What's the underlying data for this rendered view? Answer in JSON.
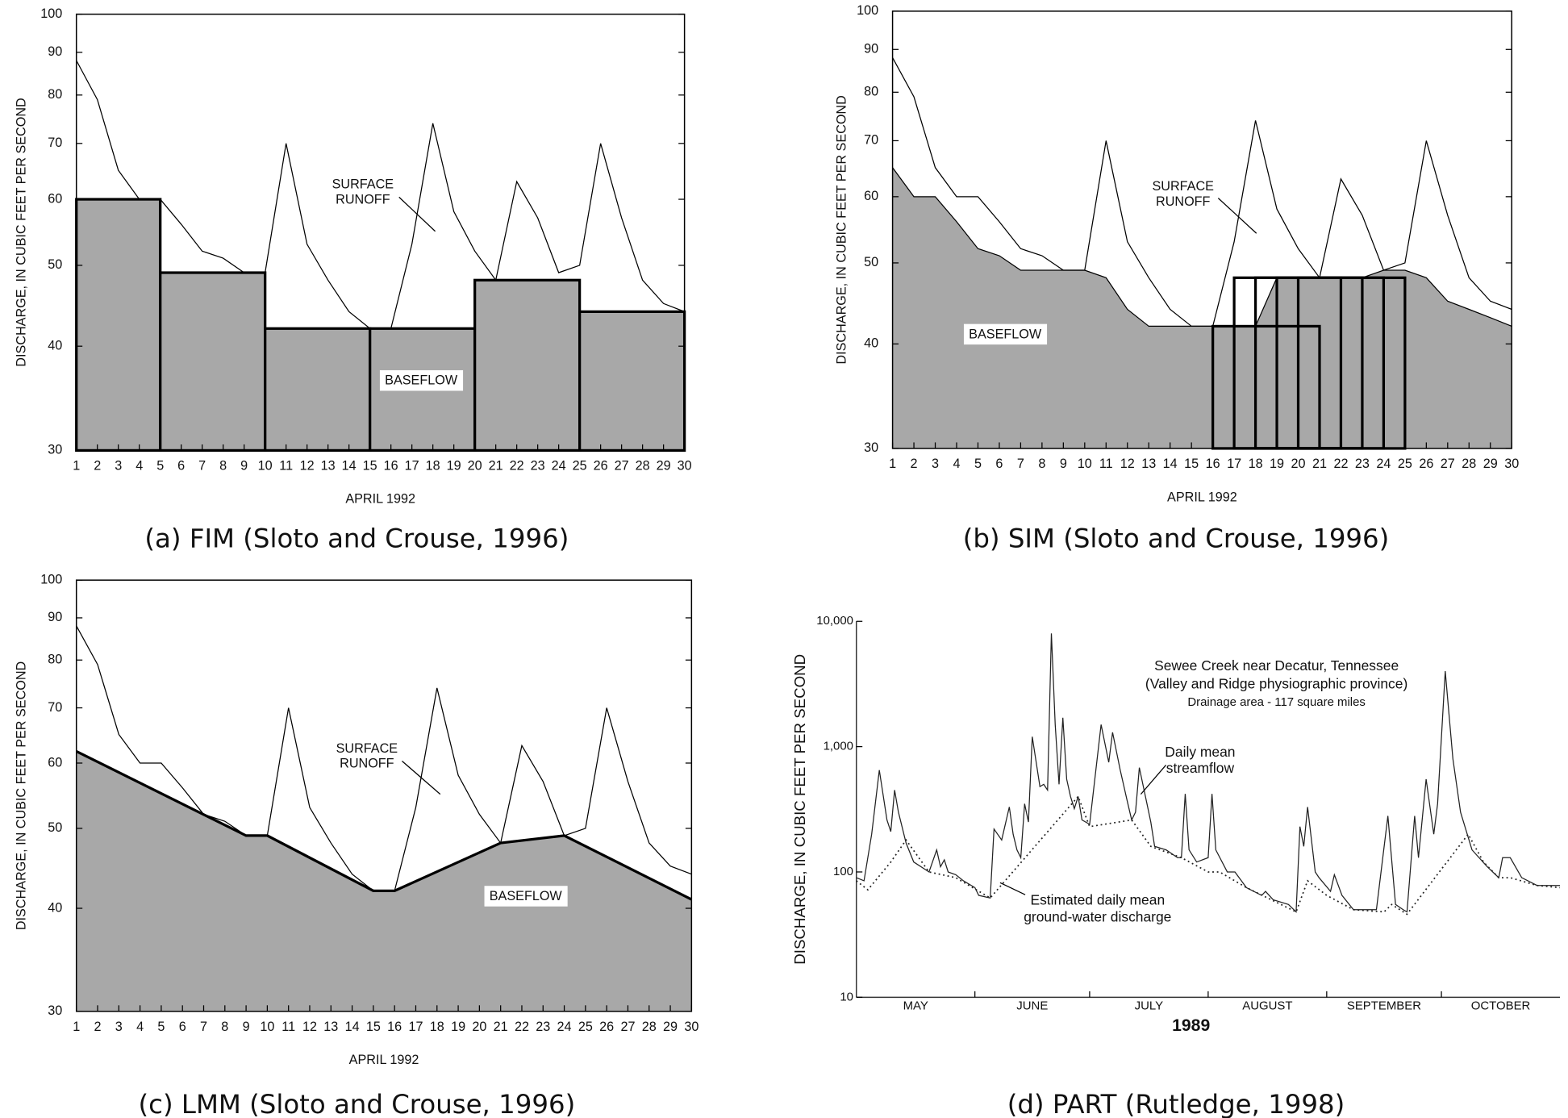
{
  "chart_data": [
    {
      "type": "line",
      "title": "(a) FIM (Sloto and Crouse, 1996)",
      "x_label": "APRIL 1992",
      "y_label": "DISCHARGE, IN CUBIC FEET PER SECOND",
      "log_y": true,
      "xlim": [
        1,
        30
      ],
      "xticks": [
        1,
        2,
        3,
        4,
        5,
        6,
        7,
        8,
        9,
        10,
        11,
        12,
        13,
        14,
        15,
        16,
        17,
        18,
        19,
        20,
        21,
        22,
        23,
        24,
        25,
        26,
        27,
        28,
        29,
        30
      ],
      "ylim": [
        30,
        100
      ],
      "yticks": [
        30,
        40,
        50,
        60,
        70,
        80,
        90,
        100
      ],
      "x": [
        1,
        2,
        3,
        4,
        5,
        6,
        7,
        8,
        9,
        10,
        11,
        12,
        13,
        14,
        15,
        16,
        17,
        18,
        19,
        20,
        21,
        22,
        23,
        24,
        25,
        26,
        27,
        28,
        29,
        30
      ],
      "series": [
        {
          "color": "#000000",
          "values": [
            88,
            79,
            65,
            60,
            60,
            56,
            52,
            51,
            49,
            49,
            70,
            53,
            48,
            44,
            42,
            42,
            53,
            74,
            58,
            52,
            48,
            63,
            57,
            49,
            50,
            70,
            57,
            48,
            45,
            44
          ]
        }
      ],
      "baseflow": {
        "method": "blocks",
        "color": "#a8a8a8",
        "x0": [
          1,
          5,
          10,
          15,
          20,
          25
        ],
        "x1": [
          5,
          10,
          15,
          20,
          25,
          30
        ],
        "values": [
          60,
          49,
          42,
          42,
          48,
          44
        ]
      },
      "annotations": [
        [
          "SURFACE",
          "RUNOFF"
        ],
        [
          "BASEFLOW"
        ]
      ]
    },
    {
      "type": "line",
      "title": "(b) SIM (Sloto and Crouse, 1996)",
      "x_label": "APRIL 1992",
      "y_label": "DISCHARGE, IN CUBIC FEET PER SECOND",
      "log_y": true,
      "xlim": [
        1,
        30
      ],
      "xticks": [
        1,
        2,
        3,
        4,
        5,
        6,
        7,
        8,
        9,
        10,
        11,
        12,
        13,
        14,
        15,
        16,
        17,
        18,
        19,
        20,
        21,
        22,
        23,
        24,
        25,
        26,
        27,
        28,
        29,
        30
      ],
      "ylim": [
        30,
        100
      ],
      "yticks": [
        30,
        40,
        50,
        60,
        70,
        80,
        90,
        100
      ],
      "x": [
        1,
        2,
        3,
        4,
        5,
        6,
        7,
        8,
        9,
        10,
        11,
        12,
        13,
        14,
        15,
        16,
        17,
        18,
        19,
        20,
        21,
        22,
        23,
        24,
        25,
        26,
        27,
        28,
        29,
        30
      ],
      "series": [
        {
          "color": "#000000",
          "values": [
            88,
            79,
            65,
            60,
            60,
            56,
            52,
            51,
            49,
            49,
            70,
            53,
            48,
            44,
            42,
            42,
            53,
            74,
            58,
            52,
            48,
            63,
            57,
            49,
            50,
            70,
            57,
            48,
            45,
            44
          ]
        }
      ],
      "baseflow": {
        "method": "line",
        "color": "#a8a8a8",
        "values": [
          65,
          60,
          60,
          56,
          52,
          51,
          49,
          49,
          49,
          49,
          48,
          44,
          42,
          42,
          42,
          42,
          42,
          42,
          48,
          48,
          48,
          48,
          48,
          49,
          49,
          48,
          45,
          44,
          43,
          42
        ],
        "windows": {
          "x0": [
            16,
            17,
            18,
            19,
            20
          ],
          "x1": [
            21,
            22,
            23,
            24,
            25
          ],
          "values": [
            42,
            48,
            48,
            48,
            48
          ]
        }
      },
      "annotations": [
        [
          "SURFACE",
          "RUNOFF"
        ],
        [
          "BASEFLOW"
        ]
      ]
    },
    {
      "type": "line",
      "title": "(c) LMM (Sloto and Crouse, 1996)",
      "x_label": "APRIL 1992",
      "y_label": "DISCHARGE, IN CUBIC FEET PER SECOND",
      "log_y": true,
      "xlim": [
        1,
        30
      ],
      "xticks": [
        1,
        2,
        3,
        4,
        5,
        6,
        7,
        8,
        9,
        10,
        11,
        12,
        13,
        14,
        15,
        16,
        17,
        18,
        19,
        20,
        21,
        22,
        23,
        24,
        25,
        26,
        27,
        28,
        29,
        30
      ],
      "ylim": [
        30,
        100
      ],
      "yticks": [
        30,
        40,
        50,
        60,
        70,
        80,
        90,
        100
      ],
      "x": [
        1,
        2,
        3,
        4,
        5,
        6,
        7,
        8,
        9,
        10,
        11,
        12,
        13,
        14,
        15,
        16,
        17,
        18,
        19,
        20,
        21,
        22,
        23,
        24,
        25,
        26,
        27,
        28,
        29,
        30
      ],
      "series": [
        {
          "color": "#000000",
          "values": [
            88,
            79,
            65,
            60,
            60,
            56,
            52,
            51,
            49,
            49,
            70,
            53,
            48,
            44,
            42,
            42,
            53,
            74,
            58,
            52,
            48,
            63,
            57,
            49,
            50,
            70,
            57,
            48,
            45,
            44
          ]
        }
      ],
      "baseflow": {
        "method": "line",
        "color": "#a8a8a8",
        "x": [
          1,
          9,
          10,
          15,
          16,
          21,
          24,
          30
        ],
        "values": [
          62,
          49,
          49,
          42,
          42,
          48,
          49,
          41
        ]
      },
      "annotations": [
        [
          "SURFACE",
          "RUNOFF"
        ],
        [
          "BASEFLOW"
        ]
      ]
    },
    {
      "type": "line",
      "title": "(d) PART (Rutledge, 1998)",
      "x_label": "1989",
      "y_label": "DISCHARGE, IN CUBIC FEET PER SECOND",
      "log_y": true,
      "xlim": [
        1,
        185
      ],
      "xticks": [
        32,
        62,
        93,
        124,
        154
      ],
      "categories": [
        "MAY",
        "JUNE",
        "JULY",
        "AUGUST",
        "SEPTEMBER",
        "OCTOBER"
      ],
      "ylim": [
        10,
        10000
      ],
      "yticks": [
        10,
        100,
        {
          "value": 1000,
          "label": "1,000"
        },
        {
          "value": 10000,
          "label": "10,000"
        }
      ],
      "series": [
        {
          "style": "solid",
          "color": "#222222",
          "x": [
            1,
            3,
            5,
            7,
            9,
            10,
            11,
            12,
            14,
            16,
            20,
            22,
            23,
            24,
            25,
            27,
            29,
            32,
            33,
            36,
            37,
            39,
            41,
            42,
            43,
            44,
            45,
            46,
            47,
            49,
            50,
            51,
            52,
            53,
            54,
            55,
            56,
            57,
            58,
            59,
            60,
            62,
            65,
            67,
            68,
            70,
            72,
            73,
            74,
            75,
            77,
            78,
            79,
            82,
            85,
            86,
            87,
            88,
            90,
            93,
            94,
            95,
            98,
            100,
            103,
            107,
            108,
            110,
            114,
            116,
            117,
            118,
            119,
            121,
            122,
            125,
            126,
            128,
            131,
            134,
            137,
            140,
            142,
            144,
            145,
            147,
            148,
            150,
            152,
            153,
            155,
            157,
            159,
            162,
            166,
            169,
            170,
            172,
            175,
            179,
            185
          ],
          "values": [
            90,
            85,
            200,
            650,
            260,
            210,
            450,
            300,
            170,
            120,
            100,
            150,
            110,
            125,
            100,
            95,
            85,
            75,
            65,
            62,
            220,
            180,
            330,
            200,
            150,
            130,
            350,
            250,
            1200,
            480,
            500,
            450,
            8000,
            1500,
            500,
            1700,
            550,
            400,
            320,
            400,
            260,
            240,
            1500,
            750,
            1300,
            650,
            350,
            260,
            300,
            680,
            350,
            250,
            160,
            150,
            130,
            130,
            420,
            150,
            120,
            130,
            420,
            150,
            100,
            100,
            75,
            65,
            70,
            60,
            55,
            48,
            230,
            160,
            330,
            100,
            90,
            70,
            95,
            65,
            50,
            50,
            50,
            280,
            55,
            50,
            48,
            280,
            130,
            550,
            200,
            350,
            4000,
            800,
            300,
            150,
            110,
            90,
            130,
            130,
            90,
            78,
            78
          ]
        },
        {
          "style": "dotted",
          "color": "#222222",
          "x": [
            1,
            4,
            10,
            14,
            20,
            27,
            36,
            59,
            62,
            73,
            78,
            86,
            93,
            96,
            103,
            116,
            119,
            124,
            131,
            139,
            141,
            145,
            161,
            165,
            169,
            172,
            179,
            185
          ],
          "values": [
            85,
            72,
            120,
            180,
            100,
            90,
            62,
            400,
            230,
            260,
            160,
            130,
            100,
            100,
            75,
            48,
            85,
            65,
            50,
            48,
            55,
            46,
            200,
            120,
            90,
            90,
            78,
            75
          ]
        }
      ],
      "annotations": [
        [
          "Sewee Creek near Decatur, Tennessee",
          "(Valley and Ridge physiographic province)",
          "Drainage area - 117 square miles"
        ],
        [
          "Daily mean",
          "streamflow"
        ],
        [
          "Estimated daily mean",
          "ground-water discharge"
        ]
      ]
    }
  ]
}
